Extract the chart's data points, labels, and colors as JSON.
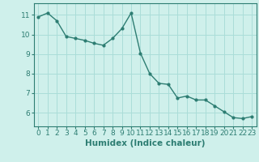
{
  "x": [
    0,
    1,
    2,
    3,
    4,
    5,
    6,
    7,
    8,
    9,
    10,
    11,
    12,
    13,
    14,
    15,
    16,
    17,
    18,
    19,
    20,
    21,
    22,
    23
  ],
  "y": [
    10.9,
    11.1,
    10.7,
    9.9,
    9.8,
    9.7,
    9.55,
    9.45,
    9.8,
    10.3,
    11.1,
    9.05,
    8.0,
    7.5,
    7.45,
    6.75,
    6.85,
    6.65,
    6.65,
    6.35,
    6.05,
    5.75,
    5.7,
    5.8
  ],
  "line_color": "#2d7d72",
  "marker": "o",
  "marker_size": 2.0,
  "bg_color": "#cff0eb",
  "grid_color": "#aaddd8",
  "xlabel": "Humidex (Indice chaleur)",
  "xlabel_fontsize": 7.5,
  "tick_fontsize": 6.5,
  "xlim": [
    -0.5,
    23.5
  ],
  "ylim": [
    5.3,
    11.6
  ],
  "yticks": [
    6,
    7,
    8,
    9,
    10,
    11
  ],
  "xticks": [
    0,
    1,
    2,
    3,
    4,
    5,
    6,
    7,
    8,
    9,
    10,
    11,
    12,
    13,
    14,
    15,
    16,
    17,
    18,
    19,
    20,
    21,
    22,
    23
  ],
  "linewidth": 1.0
}
